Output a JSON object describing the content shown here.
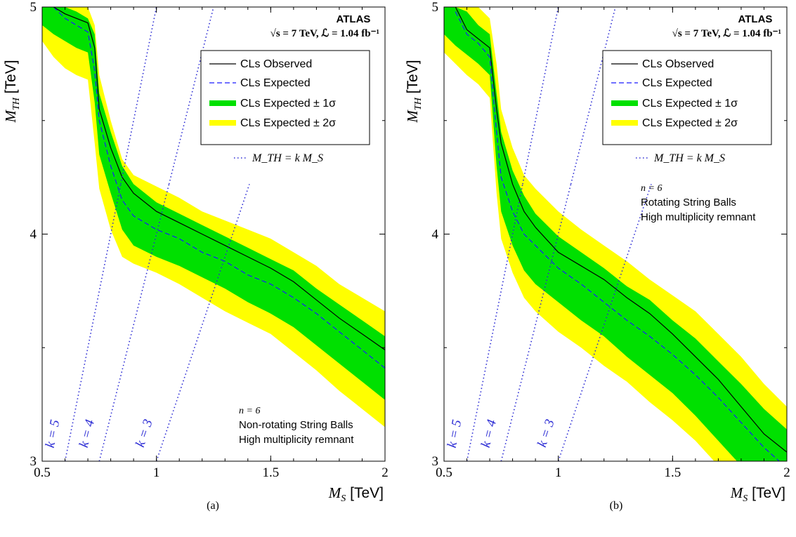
{
  "chart_data": [
    {
      "type": "line",
      "panel_label": "(a)",
      "experiment": "ATLAS",
      "energy_label": "√s = 7 TeV, ℒ = 1.04 fb⁻¹",
      "xlabel_var": "M",
      "xlabel_sub": "S",
      "xlabel_unit": " [TeV]",
      "ylabel_var": "M",
      "ylabel_sub": "TH",
      "ylabel_unit": " [TeV]",
      "xlim": [
        0.5,
        2.0
      ],
      "ylim": [
        3.0,
        5.0
      ],
      "xticks": [
        "0.5",
        "1",
        "1.5",
        "2"
      ],
      "yticks": [
        "3",
        "4",
        "5"
      ],
      "legend": {
        "placement": "top-right",
        "entries": [
          "CLs Observed",
          "CLs Expected",
          "CLs Expected  ± 1σ",
          "CLs Expected  ± 2σ"
        ],
        "kline_label": "M_TH = k M_S"
      },
      "annotation": {
        "n_label": "n = 6",
        "line1": "Non-rotating String Balls",
        "line2": "High multiplicity remnant",
        "placement": "bottom-right"
      },
      "k_lines": [
        {
          "label": "k = 5",
          "k": 5
        },
        {
          "label": "k = 4",
          "k": 4
        },
        {
          "label": "k = 3",
          "k": 3
        }
      ],
      "colors": {
        "observed": "#000000",
        "expected": "#1a1aff",
        "band1": "#00e000",
        "band2": "#ffff00",
        "klines": "#2a2ad4"
      },
      "series": [
        {
          "name": "CLs Observed",
          "x": [
            0.55,
            0.6,
            0.65,
            0.7,
            0.73,
            0.75,
            0.8,
            0.85,
            0.9,
            1.0,
            1.1,
            1.2,
            1.3,
            1.4,
            1.5,
            1.6,
            1.7,
            1.8,
            1.9,
            2.0
          ],
          "values": [
            5.0,
            4.97,
            4.95,
            4.93,
            4.82,
            4.55,
            4.38,
            4.25,
            4.18,
            4.1,
            4.05,
            4.0,
            3.95,
            3.9,
            3.85,
            3.79,
            3.71,
            3.63,
            3.56,
            3.49
          ]
        },
        {
          "name": "CLs Expected",
          "x": [
            0.55,
            0.6,
            0.65,
            0.7,
            0.73,
            0.75,
            0.8,
            0.85,
            0.9,
            1.0,
            1.1,
            1.2,
            1.3,
            1.4,
            1.5,
            1.6,
            1.7,
            1.8,
            1.9,
            2.0
          ],
          "values": [
            5.0,
            4.95,
            4.92,
            4.89,
            4.72,
            4.5,
            4.3,
            4.15,
            4.08,
            4.02,
            3.98,
            3.92,
            3.88,
            3.82,
            3.78,
            3.72,
            3.65,
            3.57,
            3.49,
            3.41
          ]
        },
        {
          "name": "CLs Expected ± 1σ",
          "x": [
            0.5,
            0.55,
            0.6,
            0.65,
            0.7,
            0.73,
            0.75,
            0.8,
            0.85,
            0.9,
            1.0,
            1.1,
            1.2,
            1.3,
            1.4,
            1.5,
            1.6,
            1.7,
            1.8,
            1.9,
            2.0
          ],
          "upper": [
            5.0,
            5.0,
            5.0,
            4.98,
            4.95,
            4.88,
            4.62,
            4.45,
            4.3,
            4.22,
            4.14,
            4.09,
            4.04,
            3.99,
            3.94,
            3.89,
            3.84,
            3.76,
            3.69,
            3.62,
            3.55
          ],
          "lower": [
            4.92,
            4.88,
            4.85,
            4.82,
            4.8,
            4.58,
            4.35,
            4.18,
            4.02,
            3.95,
            3.9,
            3.86,
            3.81,
            3.76,
            3.7,
            3.65,
            3.59,
            3.51,
            3.43,
            3.35,
            3.27
          ]
        },
        {
          "name": "CLs Expected ± 2σ",
          "x": [
            0.5,
            0.55,
            0.6,
            0.65,
            0.7,
            0.73,
            0.75,
            0.8,
            0.85,
            0.9,
            1.0,
            1.1,
            1.2,
            1.3,
            1.4,
            1.5,
            1.6,
            1.7,
            1.8,
            1.9,
            2.0
          ],
          "upper": [
            5.0,
            5.0,
            5.0,
            5.0,
            5.0,
            4.92,
            4.7,
            4.5,
            4.33,
            4.26,
            4.21,
            4.16,
            4.1,
            4.06,
            4.02,
            3.98,
            3.92,
            3.86,
            3.78,
            3.72,
            3.66
          ],
          "lower": [
            4.85,
            4.78,
            4.73,
            4.7,
            4.68,
            4.4,
            4.2,
            4.02,
            3.9,
            3.87,
            3.83,
            3.78,
            3.72,
            3.66,
            3.61,
            3.56,
            3.48,
            3.4,
            3.31,
            3.23,
            3.15
          ]
        }
      ]
    },
    {
      "type": "line",
      "panel_label": "(b)",
      "experiment": "ATLAS",
      "energy_label": "√s = 7 TeV, ℒ = 1.04 fb⁻¹",
      "xlabel_var": "M",
      "xlabel_sub": "S",
      "xlabel_unit": " [TeV]",
      "ylabel_var": "M",
      "ylabel_sub": "TH",
      "ylabel_unit": " [TeV]",
      "xlim": [
        0.5,
        2.0
      ],
      "ylim": [
        3.0,
        5.0
      ],
      "xticks": [
        "0.5",
        "1",
        "1.5",
        "2"
      ],
      "yticks": [
        "3",
        "4",
        "5"
      ],
      "legend": {
        "placement": "top-right",
        "entries": [
          "CLs Observed",
          "CLs Expected",
          "CLs Expected  ± 1σ",
          "CLs Expected  ± 2σ"
        ],
        "kline_label": "M_TH = k M_S"
      },
      "annotation": {
        "n_label": "n = 6",
        "line1": "Rotating String Balls",
        "line2": "High multiplicity remnant",
        "placement": "middle-right"
      },
      "k_lines": [
        {
          "label": "k = 5",
          "k": 5
        },
        {
          "label": "k = 4",
          "k": 4
        },
        {
          "label": "k = 3",
          "k": 3
        }
      ],
      "colors": {
        "observed": "#000000",
        "expected": "#1a1aff",
        "band1": "#00e000",
        "band2": "#ffff00",
        "klines": "#2a2ad4"
      },
      "series": [
        {
          "name": "CLs Observed",
          "x": [
            0.55,
            0.6,
            0.65,
            0.7,
            0.73,
            0.75,
            0.8,
            0.85,
            0.9,
            1.0,
            1.1,
            1.2,
            1.3,
            1.4,
            1.5,
            1.6,
            1.7,
            1.8,
            1.9,
            2.0
          ],
          "values": [
            5.0,
            4.9,
            4.86,
            4.82,
            4.55,
            4.4,
            4.22,
            4.1,
            4.03,
            3.92,
            3.86,
            3.8,
            3.72,
            3.65,
            3.56,
            3.46,
            3.36,
            3.24,
            3.12,
            3.04
          ]
        },
        {
          "name": "CLs Expected",
          "x": [
            0.55,
            0.6,
            0.65,
            0.7,
            0.73,
            0.75,
            0.8,
            0.85,
            0.9,
            1.0,
            1.1,
            1.2,
            1.3,
            1.4,
            1.5,
            1.6,
            1.7,
            1.8,
            1.9,
            2.0
          ],
          "values": [
            4.98,
            4.88,
            4.84,
            4.78,
            4.45,
            4.25,
            4.1,
            4.0,
            3.95,
            3.85,
            3.78,
            3.7,
            3.62,
            3.55,
            3.47,
            3.38,
            3.28,
            3.17,
            3.06,
            2.97
          ]
        },
        {
          "name": "CLs Expected ± 1σ",
          "x": [
            0.5,
            0.55,
            0.6,
            0.65,
            0.7,
            0.73,
            0.75,
            0.8,
            0.85,
            0.9,
            1.0,
            1.1,
            1.2,
            1.3,
            1.4,
            1.5,
            1.6,
            1.7,
            1.8,
            1.9,
            2.0
          ],
          "upper": [
            5.0,
            5.0,
            4.98,
            4.92,
            4.88,
            4.62,
            4.45,
            4.28,
            4.17,
            4.09,
            3.99,
            3.92,
            3.85,
            3.77,
            3.71,
            3.62,
            3.54,
            3.44,
            3.34,
            3.23,
            3.14
          ],
          "lower": [
            4.88,
            4.83,
            4.79,
            4.75,
            4.7,
            4.3,
            4.1,
            3.95,
            3.84,
            3.78,
            3.7,
            3.62,
            3.55,
            3.46,
            3.38,
            3.3,
            3.2,
            3.09,
            2.98,
            2.9,
            2.82
          ]
        },
        {
          "name": "CLs Expected ± 2σ",
          "x": [
            0.5,
            0.55,
            0.6,
            0.65,
            0.7,
            0.73,
            0.75,
            0.8,
            0.85,
            0.9,
            1.0,
            1.1,
            1.2,
            1.3,
            1.4,
            1.5,
            1.6,
            1.7,
            1.8,
            1.9,
            2.0
          ],
          "upper": [
            5.0,
            5.0,
            5.0,
            5.0,
            4.95,
            4.75,
            4.55,
            4.38,
            4.26,
            4.2,
            4.1,
            4.02,
            3.95,
            3.88,
            3.8,
            3.73,
            3.66,
            3.56,
            3.46,
            3.34,
            3.24
          ],
          "lower": [
            4.8,
            4.75,
            4.7,
            4.66,
            4.6,
            4.18,
            3.98,
            3.83,
            3.72,
            3.66,
            3.57,
            3.5,
            3.42,
            3.35,
            3.26,
            3.18,
            3.09,
            2.98,
            2.88,
            2.8,
            2.72
          ]
        }
      ]
    }
  ]
}
